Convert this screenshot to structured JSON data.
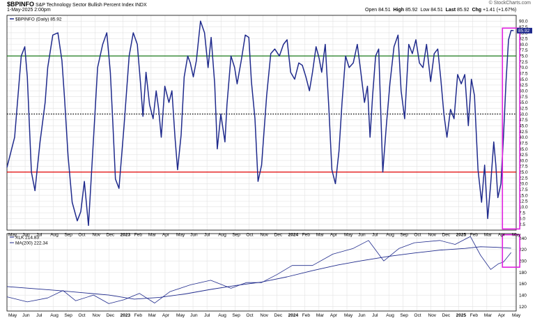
{
  "header": {
    "symbol": "$BPINFO",
    "name": "S&P Technology Sector Bullish Percent Index",
    "exchange": "INDX",
    "date": "1-May-2025 2:00pm",
    "watermark": "© StockCharts.com",
    "open_label": "Open",
    "open_value": "84.51",
    "high_label": "High",
    "high_value": "85.92",
    "low_label": "Low",
    "low_value": "84.51",
    "last_label": "Last",
    "last_value": "85.92",
    "chg_label": "Chg",
    "chg_value": "+1.41 (+1.67%)"
  },
  "colors": {
    "series": "#1f2a8c",
    "upper_line": "#1a7a1a",
    "lower_line": "#e00000",
    "highlight": "#e020e0",
    "grid": "#e2e2e2"
  },
  "x_axis": {
    "labels": [
      "May",
      "Jun",
      "Jul",
      "Aug",
      "Sep",
      "Oct",
      "Nov",
      "Dec",
      "2023",
      "Feb",
      "Mar",
      "Apr",
      "May",
      "Jun",
      "Jul",
      "Aug",
      "Sep",
      "Oct",
      "Nov",
      "Dec",
      "2024",
      "Feb",
      "Mar",
      "Apr",
      "May",
      "Jun",
      "Jul",
      "Aug",
      "Sep",
      "Oct",
      "Nov",
      "Dec",
      "2025",
      "Feb",
      "Mar",
      "Apr",
      "May"
    ],
    "bold": [
      "2023",
      "2024",
      "2025"
    ]
  },
  "chart_data": [
    {
      "type": "line",
      "legend": "$BPINFO (Daily) 85.92",
      "last_value_label": "85.92",
      "ylim": [
        0,
        92.5
      ],
      "yticks": [
        "2.5",
        "5.0",
        "7.5",
        "10.0",
        "12.5",
        "15.0",
        "17.5",
        "20.0",
        "22.5",
        "25.0",
        "27.5",
        "30.0",
        "32.5",
        "35.0",
        "37.5",
        "40.0",
        "42.5",
        "45.0",
        "47.5",
        "50.0",
        "52.5",
        "55.0",
        "57.5",
        "60.0",
        "62.5",
        "65.0",
        "67.5",
        "70.0",
        "72.5",
        "75.0",
        "77.5",
        "80.0",
        "82.5",
        "85.0",
        "87.5",
        "90.0"
      ],
      "reference_lines": [
        {
          "value": 75,
          "style": "solid",
          "color": "#1a7a1a"
        },
        {
          "value": 50,
          "style": "dotted",
          "color": "#000000"
        },
        {
          "value": 25,
          "style": "solid",
          "color": "#e00000"
        }
      ],
      "highlight_box": {
        "x_from": 0.973,
        "x_to": 1.007,
        "y_from": 0.5,
        "y_to": 87.0
      },
      "series": [
        {
          "name": "$BPINFO",
          "points": [
            [
              0,
              27
            ],
            [
              0.015,
              40
            ],
            [
              0.028,
              75
            ],
            [
              0.035,
              79
            ],
            [
              0.04,
              66
            ],
            [
              0.048,
              25
            ],
            [
              0.055,
              17
            ],
            [
              0.065,
              38
            ],
            [
              0.075,
              55
            ],
            [
              0.08,
              70
            ],
            [
              0.09,
              84
            ],
            [
              0.1,
              85
            ],
            [
              0.108,
              73
            ],
            [
              0.113,
              57
            ],
            [
              0.12,
              32
            ],
            [
              0.128,
              12
            ],
            [
              0.138,
              4
            ],
            [
              0.145,
              8
            ],
            [
              0.152,
              21
            ],
            [
              0.16,
              2
            ],
            [
              0.168,
              32
            ],
            [
              0.178,
              70
            ],
            [
              0.188,
              80
            ],
            [
              0.196,
              85
            ],
            [
              0.203,
              68
            ],
            [
              0.208,
              46
            ],
            [
              0.213,
              22
            ],
            [
              0.22,
              18
            ],
            [
              0.23,
              45
            ],
            [
              0.24,
              75
            ],
            [
              0.248,
              85
            ],
            [
              0.256,
              80
            ],
            [
              0.262,
              64
            ],
            [
              0.267,
              49
            ],
            [
              0.273,
              68
            ],
            [
              0.28,
              54
            ],
            [
              0.287,
              48
            ],
            [
              0.293,
              60
            ],
            [
              0.298,
              52
            ],
            [
              0.303,
              40
            ],
            [
              0.31,
              62
            ],
            [
              0.318,
              55
            ],
            [
              0.324,
              60
            ],
            [
              0.33,
              40
            ],
            [
              0.335,
              26
            ],
            [
              0.342,
              41
            ],
            [
              0.348,
              66
            ],
            [
              0.355,
              75
            ],
            [
              0.36,
              72
            ],
            [
              0.366,
              66
            ],
            [
              0.372,
              73
            ],
            [
              0.38,
              90
            ],
            [
              0.388,
              85
            ],
            [
              0.395,
              70
            ],
            [
              0.401,
              83
            ],
            [
              0.408,
              63
            ],
            [
              0.413,
              35
            ],
            [
              0.42,
              50
            ],
            [
              0.428,
              38
            ],
            [
              0.432,
              54
            ],
            [
              0.44,
              75
            ],
            [
              0.447,
              70
            ],
            [
              0.452,
              63
            ],
            [
              0.46,
              73
            ],
            [
              0.468,
              84
            ],
            [
              0.475,
              83
            ],
            [
              0.48,
              64
            ],
            [
              0.487,
              48
            ],
            [
              0.493,
              21
            ],
            [
              0.5,
              28
            ],
            [
              0.51,
              58
            ],
            [
              0.518,
              76
            ],
            [
              0.526,
              78
            ],
            [
              0.535,
              75
            ],
            [
              0.543,
              80
            ],
            [
              0.55,
              82
            ],
            [
              0.557,
              68
            ],
            [
              0.565,
              65
            ],
            [
              0.573,
              72
            ],
            [
              0.58,
              71
            ],
            [
              0.587,
              66
            ],
            [
              0.594,
              60
            ],
            [
              0.6,
              68
            ],
            [
              0.607,
              79
            ],
            [
              0.613,
              74
            ],
            [
              0.618,
              68
            ],
            [
              0.625,
              80
            ],
            [
              0.632,
              53
            ],
            [
              0.638,
              26
            ],
            [
              0.645,
              20
            ],
            [
              0.652,
              34
            ],
            [
              0.658,
              55
            ],
            [
              0.665,
              75
            ],
            [
              0.672,
              70
            ],
            [
              0.68,
              72
            ],
            [
              0.688,
              80
            ],
            [
              0.695,
              68
            ],
            [
              0.702,
              55
            ],
            [
              0.708,
              62
            ],
            [
              0.713,
              40
            ],
            [
              0.718,
              58
            ],
            [
              0.724,
              75
            ],
            [
              0.73,
              78
            ],
            [
              0.738,
              25
            ],
            [
              0.745,
              45
            ],
            [
              0.752,
              63
            ],
            [
              0.76,
              79
            ],
            [
              0.768,
              84
            ],
            [
              0.774,
              60
            ],
            [
              0.781,
              48
            ],
            [
              0.789,
              80
            ],
            [
              0.796,
              76
            ],
            [
              0.803,
              82
            ],
            [
              0.81,
              72
            ],
            [
              0.817,
              70
            ],
            [
              0.824,
              80
            ],
            [
              0.832,
              64
            ],
            [
              0.839,
              76
            ],
            [
              0.846,
              78
            ],
            [
              0.852,
              65
            ],
            [
              0.858,
              50
            ],
            [
              0.864,
              40
            ],
            [
              0.871,
              52
            ],
            [
              0.878,
              48
            ],
            [
              0.885,
              67
            ],
            [
              0.892,
              63
            ],
            [
              0.899,
              67
            ],
            [
              0.906,
              45
            ],
            [
              0.912,
              65
            ],
            [
              0.918,
              58
            ],
            [
              0.925,
              26
            ],
            [
              0.932,
              12
            ],
            [
              0.938,
              28
            ],
            [
              0.944,
              5
            ],
            [
              0.95,
              20
            ],
            [
              0.956,
              38
            ],
            [
              0.96,
              28
            ],
            [
              0.964,
              14
            ],
            [
              0.97,
              20
            ],
            [
              0.975,
              40
            ],
            [
              0.98,
              64
            ],
            [
              0.985,
              82
            ],
            [
              0.99,
              86
            ],
            [
              0.995,
              85.92
            ]
          ]
        }
      ]
    },
    {
      "type": "line",
      "legend_1": "XLK 214.83",
      "legend_2": "MA(200) 222.34",
      "ylim": [
        112,
        248
      ],
      "yticks": [
        "120",
        "140",
        "160",
        "180",
        "200",
        "220",
        "240"
      ],
      "highlight_box": {
        "x_from": 0.973,
        "x_to": 1.007,
        "y_from": 189,
        "y_to": 246
      },
      "series": [
        {
          "name": "XLK",
          "points": [
            [
              0,
              137
            ],
            [
              0.04,
              128
            ],
            [
              0.08,
              135
            ],
            [
              0.11,
              148
            ],
            [
              0.135,
              130
            ],
            [
              0.17,
              140
            ],
            [
              0.2,
              125
            ],
            [
              0.23,
              132
            ],
            [
              0.26,
              143
            ],
            [
              0.29,
              126
            ],
            [
              0.32,
              146
            ],
            [
              0.36,
              158
            ],
            [
              0.4,
              166
            ],
            [
              0.44,
              152
            ],
            [
              0.47,
              162
            ],
            [
              0.5,
              162
            ],
            [
              0.53,
              176
            ],
            [
              0.56,
              192
            ],
            [
              0.6,
              192
            ],
            [
              0.64,
              212
            ],
            [
              0.68,
              222
            ],
            [
              0.71,
              236
            ],
            [
              0.74,
              200
            ],
            [
              0.77,
              222
            ],
            [
              0.8,
              232
            ],
            [
              0.85,
              236
            ],
            [
              0.88,
              229
            ],
            [
              0.91,
              243
            ],
            [
              0.93,
              210
            ],
            [
              0.95,
              185
            ],
            [
              0.965,
              195
            ],
            [
              0.975,
              198
            ],
            [
              0.99,
              214.83
            ]
          ]
        },
        {
          "name": "MA(200)",
          "points": [
            [
              0,
              155
            ],
            [
              0.1,
              148
            ],
            [
              0.2,
              140
            ],
            [
              0.25,
              133
            ],
            [
              0.3,
              136
            ],
            [
              0.35,
              142
            ],
            [
              0.4,
              150
            ],
            [
              0.45,
              157
            ],
            [
              0.5,
              163
            ],
            [
              0.55,
              172
            ],
            [
              0.6,
              183
            ],
            [
              0.65,
              193
            ],
            [
              0.7,
              201
            ],
            [
              0.75,
              208
            ],
            [
              0.8,
              214
            ],
            [
              0.85,
              219
            ],
            [
              0.9,
              222
            ],
            [
              0.93,
              225
            ],
            [
              0.96,
              224
            ],
            [
              0.99,
              222.34
            ]
          ]
        }
      ]
    }
  ]
}
